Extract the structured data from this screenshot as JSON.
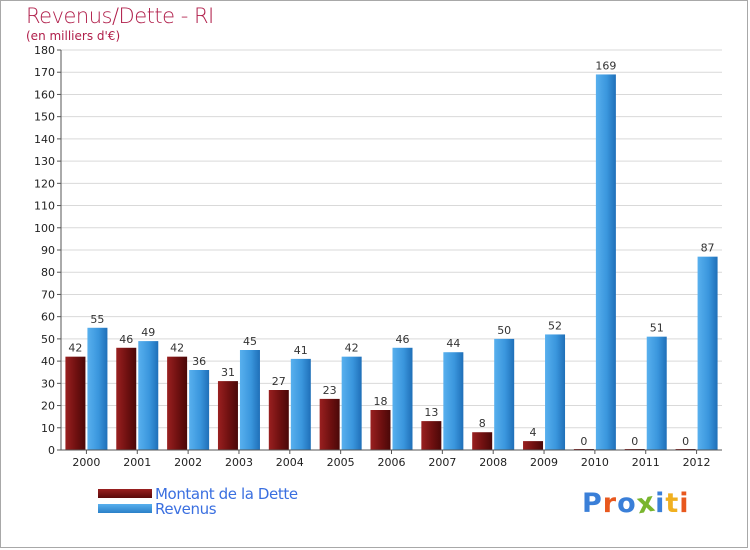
{
  "chart_data": {
    "type": "bar",
    "title": "Revenus/Dette - RI",
    "subtitle": "(en milliers d'€)",
    "categories": [
      "2000",
      "2001",
      "2002",
      "2003",
      "2004",
      "2005",
      "2006",
      "2007",
      "2008",
      "2009",
      "2010",
      "2011",
      "2012"
    ],
    "series": [
      {
        "name": "Montant de la Dette",
        "color": "#7a1414",
        "values": [
          42,
          46,
          42,
          31,
          27,
          23,
          18,
          13,
          8,
          4,
          0,
          0,
          0
        ]
      },
      {
        "name": "Revenus",
        "color": "#3a96dd",
        "values": [
          55,
          49,
          36,
          45,
          41,
          42,
          46,
          44,
          50,
          52,
          169,
          51,
          87
        ]
      }
    ],
    "ylim": [
      0,
      180
    ],
    "yticks": [
      0,
      10,
      20,
      30,
      40,
      50,
      60,
      70,
      80,
      90,
      100,
      110,
      120,
      130,
      140,
      150,
      160,
      170,
      180
    ],
    "grid": true,
    "legend": "bottom-left"
  },
  "logo": {
    "text": "Proxiti",
    "letters": [
      {
        "ch": "P",
        "color": "#3a7fd8"
      },
      {
        "ch": "r",
        "color": "#e8581e"
      },
      {
        "ch": "o",
        "color": "#3a7fd8"
      },
      {
        "ch": "x",
        "color": "#79b52e"
      },
      {
        "ch": "i",
        "color": "#3a7fd8"
      },
      {
        "ch": "t",
        "color": "#f0b020"
      },
      {
        "ch": "i",
        "color": "#e8581e"
      }
    ]
  }
}
